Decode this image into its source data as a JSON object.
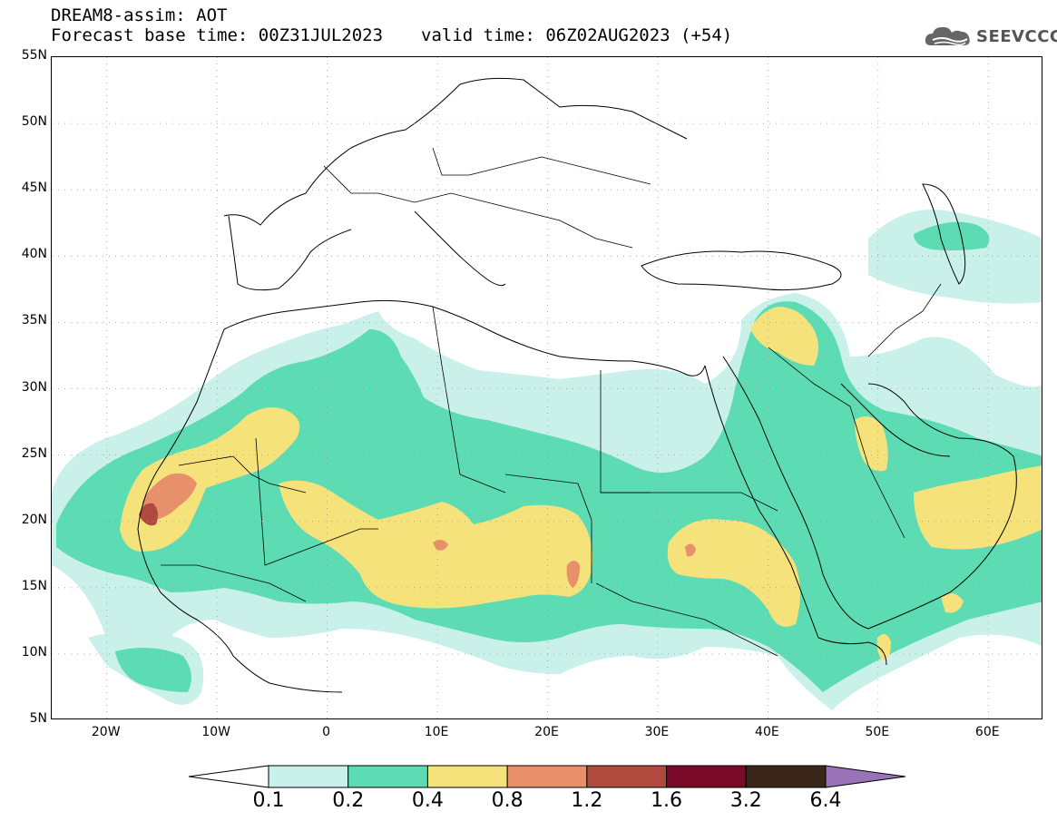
{
  "header": {
    "line1": "DREAM8-assim: AOT",
    "base_time": "Forecast base time: 00Z31JUL2023",
    "valid_time": "valid time: 06Z02AUG2023 (+54)"
  },
  "logo": {
    "text": "SEEVCCC",
    "icon": "cloud-icon"
  },
  "map": {
    "lat_labels": [
      "55N",
      "50N",
      "45N",
      "40N",
      "35N",
      "30N",
      "25N",
      "20N",
      "15N",
      "10N",
      "5N"
    ],
    "lon_labels": [
      "20W",
      "10W",
      "0",
      "10E",
      "20E",
      "30E",
      "40E",
      "50E",
      "60E"
    ],
    "lon_range": [
      -25,
      65
    ],
    "lat_range": [
      5,
      55
    ]
  },
  "colorbar": {
    "labels": [
      "0.1",
      "0.2",
      "0.4",
      "0.8",
      "1.2",
      "1.6",
      "3.2",
      "6.4"
    ],
    "colors": [
      "#ffffff",
      "#c9f1ea",
      "#5ddcb4",
      "#f6e27a",
      "#e8906a",
      "#b04a3e",
      "#7a0a2a",
      "#3a2618",
      "#9a72b8"
    ]
  }
}
